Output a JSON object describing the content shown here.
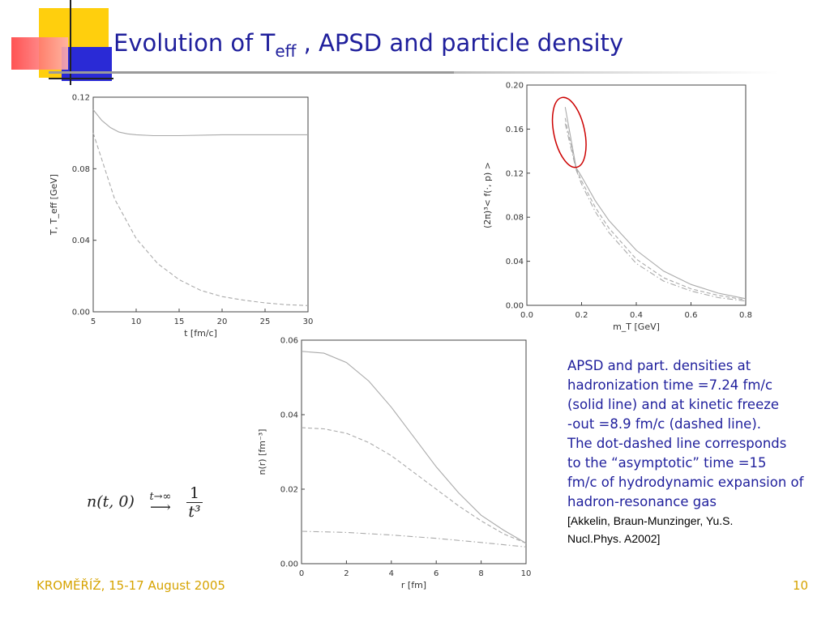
{
  "slide": {
    "title_main": "Evolution of T",
    "title_sub": "eff",
    "title_rest": " , APSD and particle density",
    "footer_left": "KROMĚŘÍŽ, 15-17 August 2005",
    "page_number": "10"
  },
  "caption": {
    "lines": [
      "APSD and part. densities at",
      "hadronization time  =7.24 fm/c",
      "(solid line) and at kinetic freeze",
      "-out  =8.9 fm/c (dashed line).",
      "The dot-dashed line corresponds",
      " to the “asymptotic” time  =15",
      "fm/c of hydrodynamic expansion of",
      "hadron-resonance gas"
    ],
    "ref_lines": [
      "[Akkelin, Braun-Munzinger, Yu.S.",
      "Nucl.Phys. A2002]"
    ]
  },
  "formula": {
    "lhs": "n(t, 0)",
    "arrow_label": "t→∞",
    "numerator": "1",
    "denominator": "t³"
  },
  "colors": {
    "title": "#1f1f9c",
    "footer": "#d6a300",
    "curve": "#aaaaaa",
    "ellipse": "#cc0000"
  },
  "chart_data": [
    {
      "type": "line",
      "title": "",
      "xlabel": "t [fm/c]",
      "ylabel": "T, T_eff [GeV]",
      "xlim": [
        5,
        30
      ],
      "ylim": [
        0,
        0.12
      ],
      "xticks": [
        "5",
        "10",
        "15",
        "20",
        "25",
        "30"
      ],
      "yticks": [
        "0.00",
        "0.04",
        "0.08",
        "0.12"
      ],
      "series": [
        {
          "style": "solid",
          "x": [
            5,
            6,
            7,
            8,
            9,
            10,
            12,
            15,
            20,
            25,
            30
          ],
          "y": [
            0.113,
            0.107,
            0.103,
            0.1005,
            0.0995,
            0.099,
            0.0985,
            0.0985,
            0.099,
            0.099,
            0.099
          ]
        },
        {
          "style": "dashed",
          "x": [
            5,
            7.5,
            10,
            12.5,
            15,
            17.5,
            20,
            22.5,
            25,
            27.5,
            30
          ],
          "y": [
            0.1,
            0.063,
            0.041,
            0.027,
            0.018,
            0.012,
            0.0085,
            0.0065,
            0.005,
            0.004,
            0.0035
          ]
        }
      ]
    },
    {
      "type": "line",
      "title": "",
      "xlabel": "m_T [GeV]",
      "ylabel": "(2π)³< f(·, p) >",
      "xlim": [
        0,
        0.8
      ],
      "ylim": [
        0,
        0.2
      ],
      "xticks": [
        "0.0",
        "0.2",
        "0.4",
        "0.6",
        "0.8"
      ],
      "yticks": [
        "0.00",
        "0.04",
        "0.08",
        "0.12",
        "0.16",
        "0.20"
      ],
      "annotation": "red ellipse around curve starts",
      "series": [
        {
          "style": "solid",
          "x": [
            0.14,
            0.18,
            0.2,
            0.25,
            0.3,
            0.4,
            0.5,
            0.6,
            0.7,
            0.8
          ],
          "y": [
            0.18,
            0.125,
            0.117,
            0.095,
            0.077,
            0.05,
            0.031,
            0.019,
            0.011,
            0.006
          ]
        },
        {
          "style": "dashed",
          "x": [
            0.14,
            0.18,
            0.2,
            0.25,
            0.3,
            0.4,
            0.5,
            0.6,
            0.7,
            0.8
          ],
          "y": [
            0.17,
            0.124,
            0.113,
            0.089,
            0.07,
            0.042,
            0.025,
            0.015,
            0.009,
            0.005
          ]
        },
        {
          "style": "dotdash",
          "x": [
            0.14,
            0.18,
            0.2,
            0.25,
            0.3,
            0.4,
            0.5,
            0.6,
            0.7,
            0.8
          ],
          "y": [
            0.165,
            0.123,
            0.11,
            0.085,
            0.066,
            0.038,
            0.022,
            0.013,
            0.007,
            0.004
          ]
        }
      ]
    },
    {
      "type": "line",
      "title": "",
      "xlabel": "r [fm]",
      "ylabel": "n(r) [fm⁻³]",
      "xlim": [
        0,
        10
      ],
      "ylim": [
        0,
        0.06
      ],
      "xticks": [
        "0",
        "2",
        "4",
        "6",
        "8",
        "10"
      ],
      "yticks": [
        "0.00",
        "0.02",
        "0.04",
        "0.06"
      ],
      "series": [
        {
          "style": "solid",
          "x": [
            0,
            1,
            2,
            3,
            4,
            5,
            6,
            7,
            8,
            9,
            10
          ],
          "y": [
            0.057,
            0.0565,
            0.054,
            0.049,
            0.042,
            0.034,
            0.026,
            0.019,
            0.013,
            0.009,
            0.0055
          ]
        },
        {
          "style": "dashed",
          "x": [
            0,
            1,
            2,
            3,
            4,
            5,
            6,
            7,
            8,
            9,
            10
          ],
          "y": [
            0.0365,
            0.0362,
            0.035,
            0.0325,
            0.029,
            0.0245,
            0.02,
            0.0155,
            0.0115,
            0.008,
            0.0055
          ]
        },
        {
          "style": "dotdash",
          "x": [
            0,
            2,
            4,
            6,
            8,
            10
          ],
          "y": [
            0.0087,
            0.0084,
            0.0077,
            0.0068,
            0.0057,
            0.0045
          ]
        }
      ]
    }
  ]
}
